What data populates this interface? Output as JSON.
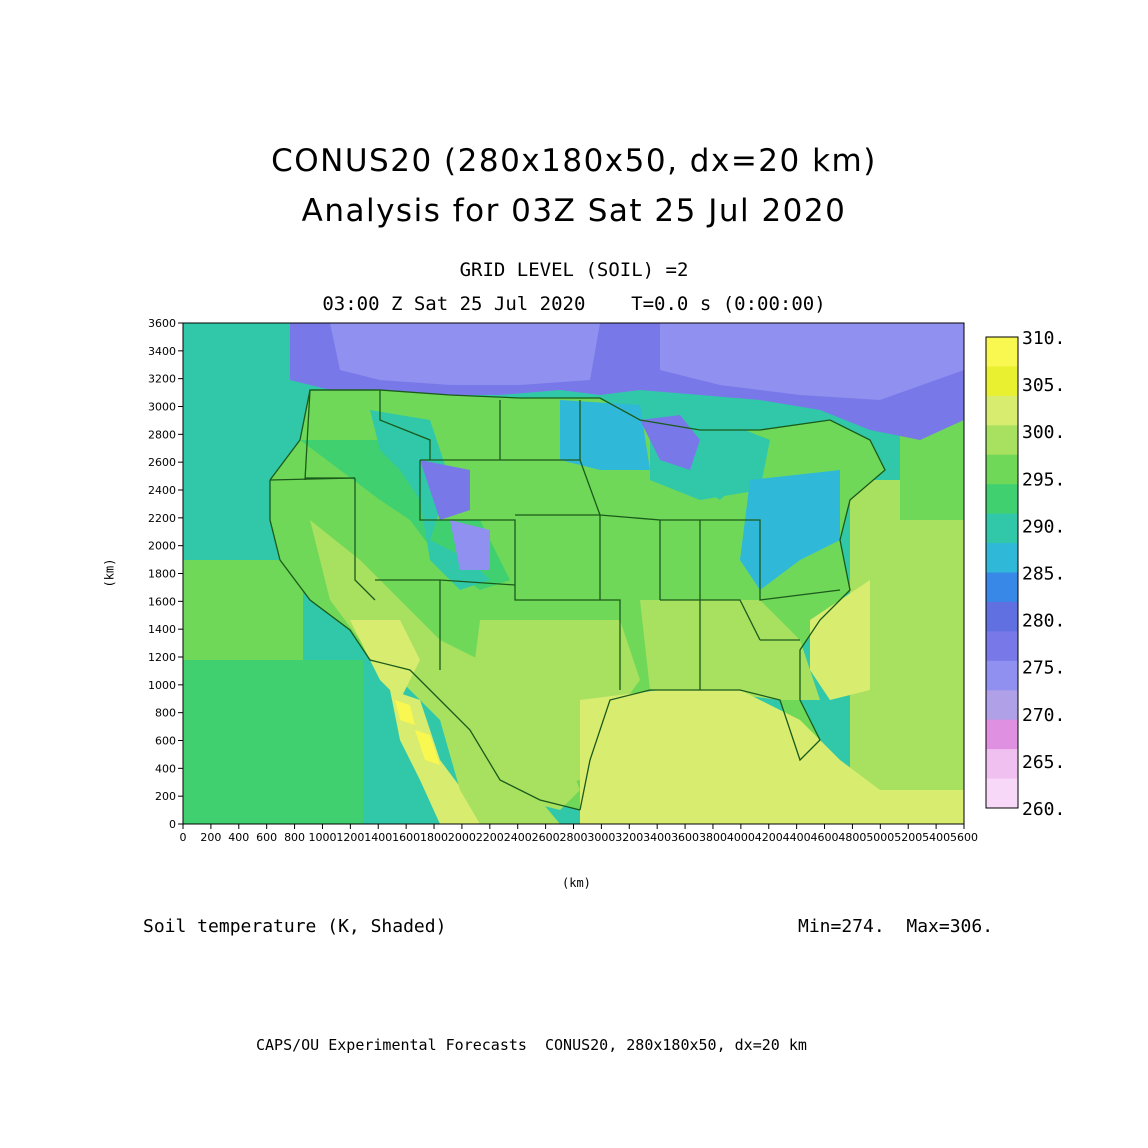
{
  "header": {
    "title_line1": "CONUS20 (280x180x50, dx=20 km)",
    "title_line2": "Analysis for 03Z Sat 25 Jul 2020",
    "level": "GRID LEVEL (SOIL) =2",
    "time": "03:00 Z Sat 25 Jul 2020    T=0.0 s (0:00:00)"
  },
  "axes": {
    "y_label": "(km)",
    "x_label": "(km)",
    "y_ticks": [
      "0",
      "200",
      "400",
      "600",
      "800",
      "1000",
      "1200",
      "1400",
      "1600",
      "1800",
      "2000",
      "2200",
      "2400",
      "2600",
      "2800",
      "3000",
      "3200",
      "3400",
      "3600"
    ],
    "x_ticks": [
      "0",
      "200",
      "400",
      "600",
      "800",
      "1000",
      "1200",
      "1400",
      "1600",
      "1800",
      "2000",
      "2200",
      "2400",
      "2600",
      "2800",
      "3000",
      "3200",
      "3400",
      "3600",
      "3800",
      "4000",
      "4200",
      "4400",
      "4600",
      "4800",
      "5000",
      "5200",
      "5400",
      "5600"
    ],
    "x_range": [
      0,
      5600
    ],
    "y_range": [
      0,
      3600
    ]
  },
  "colorbar": {
    "labels": [
      "310.",
      "305.",
      "300.",
      "295.",
      "290.",
      "285.",
      "280.",
      "275.",
      "270.",
      "265.",
      "260."
    ],
    "colors": [
      "#f8f850",
      "#e8f030",
      "#d8ec70",
      "#a8e060",
      "#70d858",
      "#40d070",
      "#30c8a8",
      "#30b8d8",
      "#3888e8",
      "#6070e0",
      "#7878e8",
      "#9090f0",
      "#b0a0e8",
      "#e090e0",
      "#f0c0f0",
      "#f8d8f8"
    ]
  },
  "footer": {
    "variable": "Soil temperature (K, Shaded)",
    "minmax": "Min=274.  Max=306.",
    "credit": "CAPS/OU Experimental Forecasts  CONUS20, 280x180x50, dx=20 km"
  }
}
